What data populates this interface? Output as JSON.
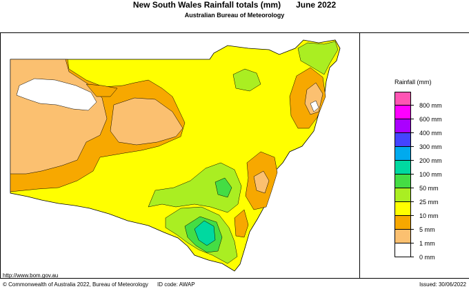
{
  "header": {
    "title": "New South Wales Rainfall totals (mm)",
    "period": "June 2022",
    "subtitle": "Australian Bureau of Meteorology"
  },
  "legend": {
    "title": "Rainfall (mm)",
    "items": [
      {
        "label": "800 mm",
        "color": "#ff55b4"
      },
      {
        "label": "600 mm",
        "color": "#ff00ff"
      },
      {
        "label": "400 mm",
        "color": "#aa00ff"
      },
      {
        "label": "300 mm",
        "color": "#4444ff"
      },
      {
        "label": "200 mm",
        "color": "#00aaee"
      },
      {
        "label": "100 mm",
        "color": "#00d9a0"
      },
      {
        "label": "50 mm",
        "color": "#44dd44"
      },
      {
        "label": "25 mm",
        "color": "#aaee22"
      },
      {
        "label": "10 mm",
        "color": "#ffff00"
      },
      {
        "label": "5 mm",
        "color": "#f7a800"
      },
      {
        "label": "1 mm",
        "color": "#fbc070"
      },
      {
        "label": "0 mm",
        "color": "#ffffff"
      }
    ]
  },
  "footer": {
    "url": "http://www.bom.gov.au",
    "copyright": "© Commonwealth of Australia 2022, Bureau of Meteorology",
    "id_code": "ID code: AWAP",
    "issued": "Issued: 30/06/2022"
  }
}
